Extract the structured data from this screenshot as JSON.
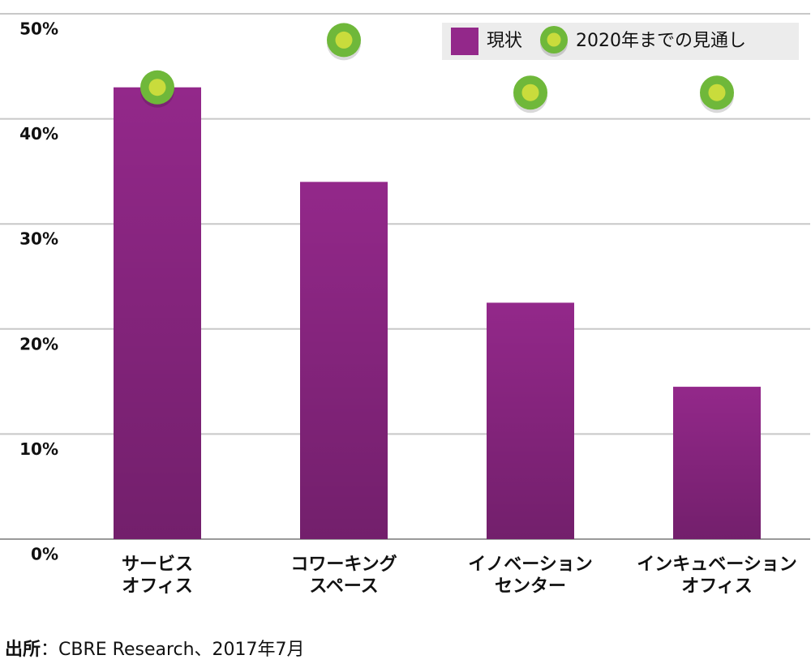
{
  "chart_data": {
    "type": "bar",
    "categories": [
      [
        "サービス",
        "オフィス"
      ],
      [
        "コワーキング",
        "スペース"
      ],
      [
        "イノベーション",
        "センター"
      ],
      [
        "インキュベーション",
        "オフィス"
      ]
    ],
    "series": [
      {
        "name": "現状",
        "type": "bar",
        "color": "#93288a",
        "values": [
          43,
          34,
          22.5,
          14.5
        ]
      },
      {
        "name": "2020年までの見通し",
        "type": "scatter",
        "color": "#6fb83a",
        "values": [
          43,
          47.5,
          42.5,
          42.5
        ]
      }
    ],
    "ylim": [
      0,
      50
    ],
    "yticks": [
      {
        "value": 0,
        "label": "0%"
      },
      {
        "value": 10,
        "label": "10%"
      },
      {
        "value": 20,
        "label": "20%"
      },
      {
        "value": 30,
        "label": "30%"
      },
      {
        "value": 40,
        "label": "40%"
      },
      {
        "value": 50,
        "label": "50%"
      }
    ],
    "grid": true,
    "legend": "top-right",
    "source_label": "出所",
    "source": "：CBRE Research、2017年7月"
  }
}
